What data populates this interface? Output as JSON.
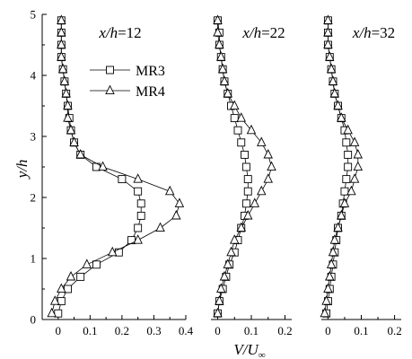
{
  "chart_data": {
    "type": "line",
    "ylabel": "y/h",
    "xlabel": {
      "main": "V/U",
      "subscript": "∞"
    },
    "ylim": [
      0,
      5
    ],
    "yticks": [
      "0",
      "1",
      "2",
      "3",
      "4",
      "5"
    ],
    "legend": {
      "position": "upper middle of first panel",
      "entries": [
        {
          "name": "MR3",
          "marker": "square"
        },
        {
          "name": "MR4",
          "marker": "triangle"
        }
      ]
    },
    "panels": [
      {
        "title": "x/h=12",
        "title_parts": {
          "var": "x/h",
          "value": "=12"
        },
        "xlim": [
          -0.05,
          0.4
        ],
        "xticks": [
          "0",
          "0.1",
          "0.2",
          "0.3",
          "0.4"
        ],
        "series": [
          {
            "name": "MR3",
            "marker": "square",
            "y": [
              0.1,
              0.3,
              0.5,
              0.7,
              0.9,
              1.1,
              1.3,
              1.5,
              1.7,
              1.9,
              2.1,
              2.3,
              2.5,
              2.7,
              2.9,
              3.1,
              3.3,
              3.5,
              3.7,
              3.9,
              4.1,
              4.3,
              4.5,
              4.7,
              4.9
            ],
            "x": [
              0.0,
              0.01,
              0.03,
              0.07,
              0.12,
              0.19,
              0.23,
              0.25,
              0.26,
              0.26,
              0.25,
              0.2,
              0.12,
              0.07,
              0.05,
              0.04,
              0.035,
              0.03,
              0.025,
              0.02,
              0.015,
              0.01,
              0.01,
              0.01,
              0.01
            ]
          },
          {
            "name": "MR4",
            "marker": "triangle",
            "y": [
              0.1,
              0.3,
              0.5,
              0.7,
              0.9,
              1.1,
              1.3,
              1.5,
              1.7,
              1.9,
              2.1,
              2.3,
              2.5,
              2.7,
              2.9,
              3.1,
              3.3,
              3.5,
              3.7,
              3.9,
              4.1,
              4.3,
              4.5,
              4.7,
              4.9
            ],
            "x": [
              -0.02,
              -0.01,
              0.01,
              0.04,
              0.09,
              0.17,
              0.25,
              0.32,
              0.37,
              0.38,
              0.35,
              0.25,
              0.14,
              0.07,
              0.05,
              0.04,
              0.03,
              0.03,
              0.025,
              0.02,
              0.015,
              0.01,
              0.01,
              0.01,
              0.01
            ]
          }
        ]
      },
      {
        "title": "x/h=22",
        "title_parts": {
          "var": "x/h",
          "value": "=22"
        },
        "xlim": [
          -0.02,
          0.22
        ],
        "xticks": [
          "0",
          "0.1",
          "0.2"
        ],
        "series": [
          {
            "name": "MR3",
            "marker": "square",
            "y": [
              0.1,
              0.3,
              0.5,
              0.7,
              0.9,
              1.1,
              1.3,
              1.5,
              1.7,
              1.9,
              2.1,
              2.3,
              2.5,
              2.7,
              2.9,
              3.1,
              3.3,
              3.5,
              3.7,
              3.9,
              4.1,
              4.3,
              4.5,
              4.7,
              4.9
            ],
            "x": [
              0.0,
              0.005,
              0.015,
              0.025,
              0.035,
              0.05,
              0.06,
              0.07,
              0.08,
              0.085,
              0.09,
              0.09,
              0.085,
              0.08,
              0.07,
              0.06,
              0.05,
              0.04,
              0.03,
              0.02,
              0.015,
              0.01,
              0.005,
              0.005,
              0.0
            ]
          },
          {
            "name": "MR4",
            "marker": "triangle",
            "y": [
              0.1,
              0.3,
              0.5,
              0.7,
              0.9,
              1.1,
              1.3,
              1.5,
              1.7,
              1.9,
              2.1,
              2.3,
              2.5,
              2.7,
              2.9,
              3.1,
              3.3,
              3.5,
              3.7,
              3.9,
              4.1,
              4.3,
              4.5,
              4.7,
              4.9
            ],
            "x": [
              0.0,
              0.005,
              0.01,
              0.02,
              0.03,
              0.04,
              0.05,
              0.07,
              0.09,
              0.11,
              0.13,
              0.15,
              0.16,
              0.15,
              0.13,
              0.1,
              0.07,
              0.05,
              0.03,
              0.02,
              0.015,
              0.01,
              0.005,
              0.0,
              0.0
            ]
          }
        ]
      },
      {
        "title": "x/h=32",
        "title_parts": {
          "var": "x/h",
          "value": "=32"
        },
        "xlim": [
          -0.02,
          0.22
        ],
        "xticks": [
          "0",
          "0.1",
          "0.2"
        ],
        "series": [
          {
            "name": "MR3",
            "marker": "square",
            "y": [
              0.1,
              0.3,
              0.5,
              0.7,
              0.9,
              1.1,
              1.3,
              1.5,
              1.7,
              1.9,
              2.1,
              2.3,
              2.5,
              2.7,
              2.9,
              3.1,
              3.3,
              3.5,
              3.7,
              3.9,
              4.1,
              4.3,
              4.5,
              4.7,
              4.9
            ],
            "x": [
              -0.005,
              0.0,
              0.005,
              0.01,
              0.015,
              0.02,
              0.025,
              0.03,
              0.04,
              0.045,
              0.05,
              0.055,
              0.06,
              0.06,
              0.055,
              0.05,
              0.04,
              0.03,
              0.02,
              0.015,
              0.01,
              0.005,
              0.0,
              0.0,
              0.0
            ]
          },
          {
            "name": "MR4",
            "marker": "triangle",
            "y": [
              0.1,
              0.3,
              0.5,
              0.7,
              0.9,
              1.1,
              1.3,
              1.5,
              1.7,
              1.9,
              2.1,
              2.3,
              2.5,
              2.7,
              2.9,
              3.1,
              3.3,
              3.5,
              3.7,
              3.9,
              4.1,
              4.3,
              4.5,
              4.7,
              4.9
            ],
            "x": [
              -0.01,
              -0.005,
              0.0,
              0.005,
              0.01,
              0.015,
              0.02,
              0.03,
              0.04,
              0.05,
              0.07,
              0.08,
              0.09,
              0.09,
              0.08,
              0.06,
              0.04,
              0.03,
              0.02,
              0.015,
              0.01,
              0.005,
              0.0,
              0.0,
              0.0
            ]
          }
        ]
      }
    ]
  }
}
